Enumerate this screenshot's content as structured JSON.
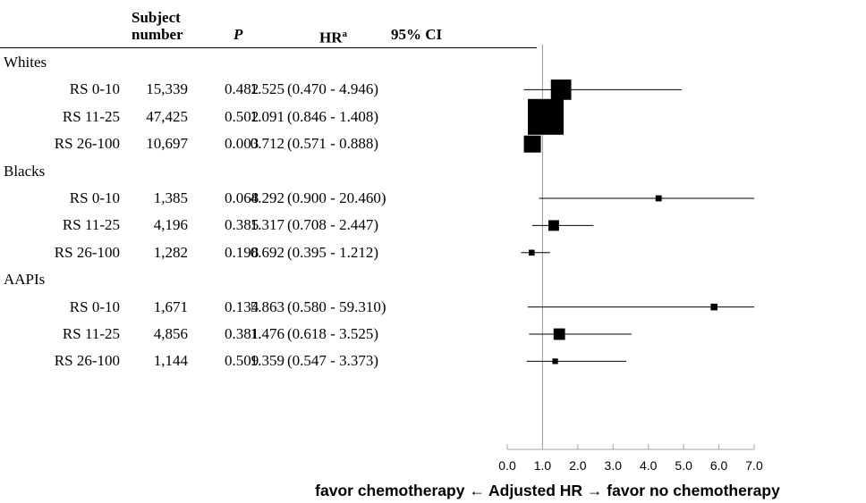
{
  "table": {
    "headers": {
      "subject_line1": "Subject",
      "subject_line2": "number",
      "p": "P",
      "hr": "HR",
      "hr_sup": "a",
      "ci": "95% CI"
    },
    "groups": [
      {
        "name": "Whites",
        "rows": [
          {
            "label": "RS 0-10",
            "n": "15,339",
            "p": "0.482",
            "hr": "1.525",
            "ci": "(0.470 - 4.946)"
          },
          {
            "label": "RS 11-25",
            "n": "47,425",
            "p": "0.502",
            "hr": "1.091",
            "ci": "(0.846 - 1.408)"
          },
          {
            "label": "RS 26-100",
            "n": "10,697",
            "p": "0.003",
            "hr": "0.712",
            "ci": "(0.571 - 0.888)"
          }
        ]
      },
      {
        "name": "Blacks",
        "rows": [
          {
            "label": "RS 0-10",
            "n": "1,385",
            "p": "0.068",
            "hr": "4.292",
            "ci": "(0.900 - 20.460)"
          },
          {
            "label": "RS 11-25",
            "n": "4,196",
            "p": "0.385",
            "hr": "1.317",
            "ci": "(0.708 - 2.447)"
          },
          {
            "label": "RS 26-100",
            "n": "1,282",
            "p": "0.198",
            "hr": "0.692",
            "ci": "(0.395 - 1.212)"
          }
        ]
      },
      {
        "name": "AAPIs",
        "rows": [
          {
            "label": "RS 0-10",
            "n": "1,671",
            "p": "0.134",
            "hr": "5.863",
            "ci": "(0.580 - 59.310)"
          },
          {
            "label": "RS 11-25",
            "n": "4,856",
            "p": "0.381",
            "hr": "1.476",
            "ci": "(0.618 - 3.525)"
          },
          {
            "label": "RS 26-100",
            "n": "1,144",
            "p": "0.509",
            "hr": "1.359",
            "ci": "(0.547 - 3.373)"
          }
        ]
      }
    ]
  },
  "chart_data": {
    "type": "forest",
    "x_axis": {
      "min": 0.0,
      "max": 7.0,
      "ticks": [
        "0.0",
        "1.0",
        "2.0",
        "3.0",
        "4.0",
        "5.0",
        "6.0",
        "7.0"
      ],
      "reference_line": 1.0
    },
    "xlabel": {
      "left": "favor chemotherapy",
      "left_arrow": "←",
      "center": "Adjusted HR",
      "right_arrow": "→",
      "right": "favor no chemotherapy"
    },
    "marker_color": "#000000",
    "series": [
      {
        "group": "Whites",
        "label": "RS 0-10",
        "hr": 1.525,
        "lo": 0.47,
        "hi": 4.946,
        "weight": 15339
      },
      {
        "group": "Whites",
        "label": "RS 11-25",
        "hr": 1.091,
        "lo": 0.846,
        "hi": 1.408,
        "weight": 47425
      },
      {
        "group": "Whites",
        "label": "RS 26-100",
        "hr": 0.712,
        "lo": 0.571,
        "hi": 0.888,
        "weight": 10697
      },
      {
        "group": "Blacks",
        "label": "RS 0-10",
        "hr": 4.292,
        "lo": 0.9,
        "hi": 20.46,
        "weight": 1385
      },
      {
        "group": "Blacks",
        "label": "RS 11-25",
        "hr": 1.317,
        "lo": 0.708,
        "hi": 2.447,
        "weight": 4196
      },
      {
        "group": "Blacks",
        "label": "RS 26-100",
        "hr": 0.692,
        "lo": 0.395,
        "hi": 1.212,
        "weight": 1282
      },
      {
        "group": "AAPIs",
        "label": "RS 0-10",
        "hr": 5.863,
        "lo": 0.58,
        "hi": 59.31,
        "weight": 1671
      },
      {
        "group": "AAPIs",
        "label": "RS 11-25",
        "hr": 1.476,
        "lo": 0.618,
        "hi": 3.525,
        "weight": 4856
      },
      {
        "group": "AAPIs",
        "label": "RS 26-100",
        "hr": 1.359,
        "lo": 0.547,
        "hi": 3.373,
        "weight": 1144
      }
    ]
  }
}
